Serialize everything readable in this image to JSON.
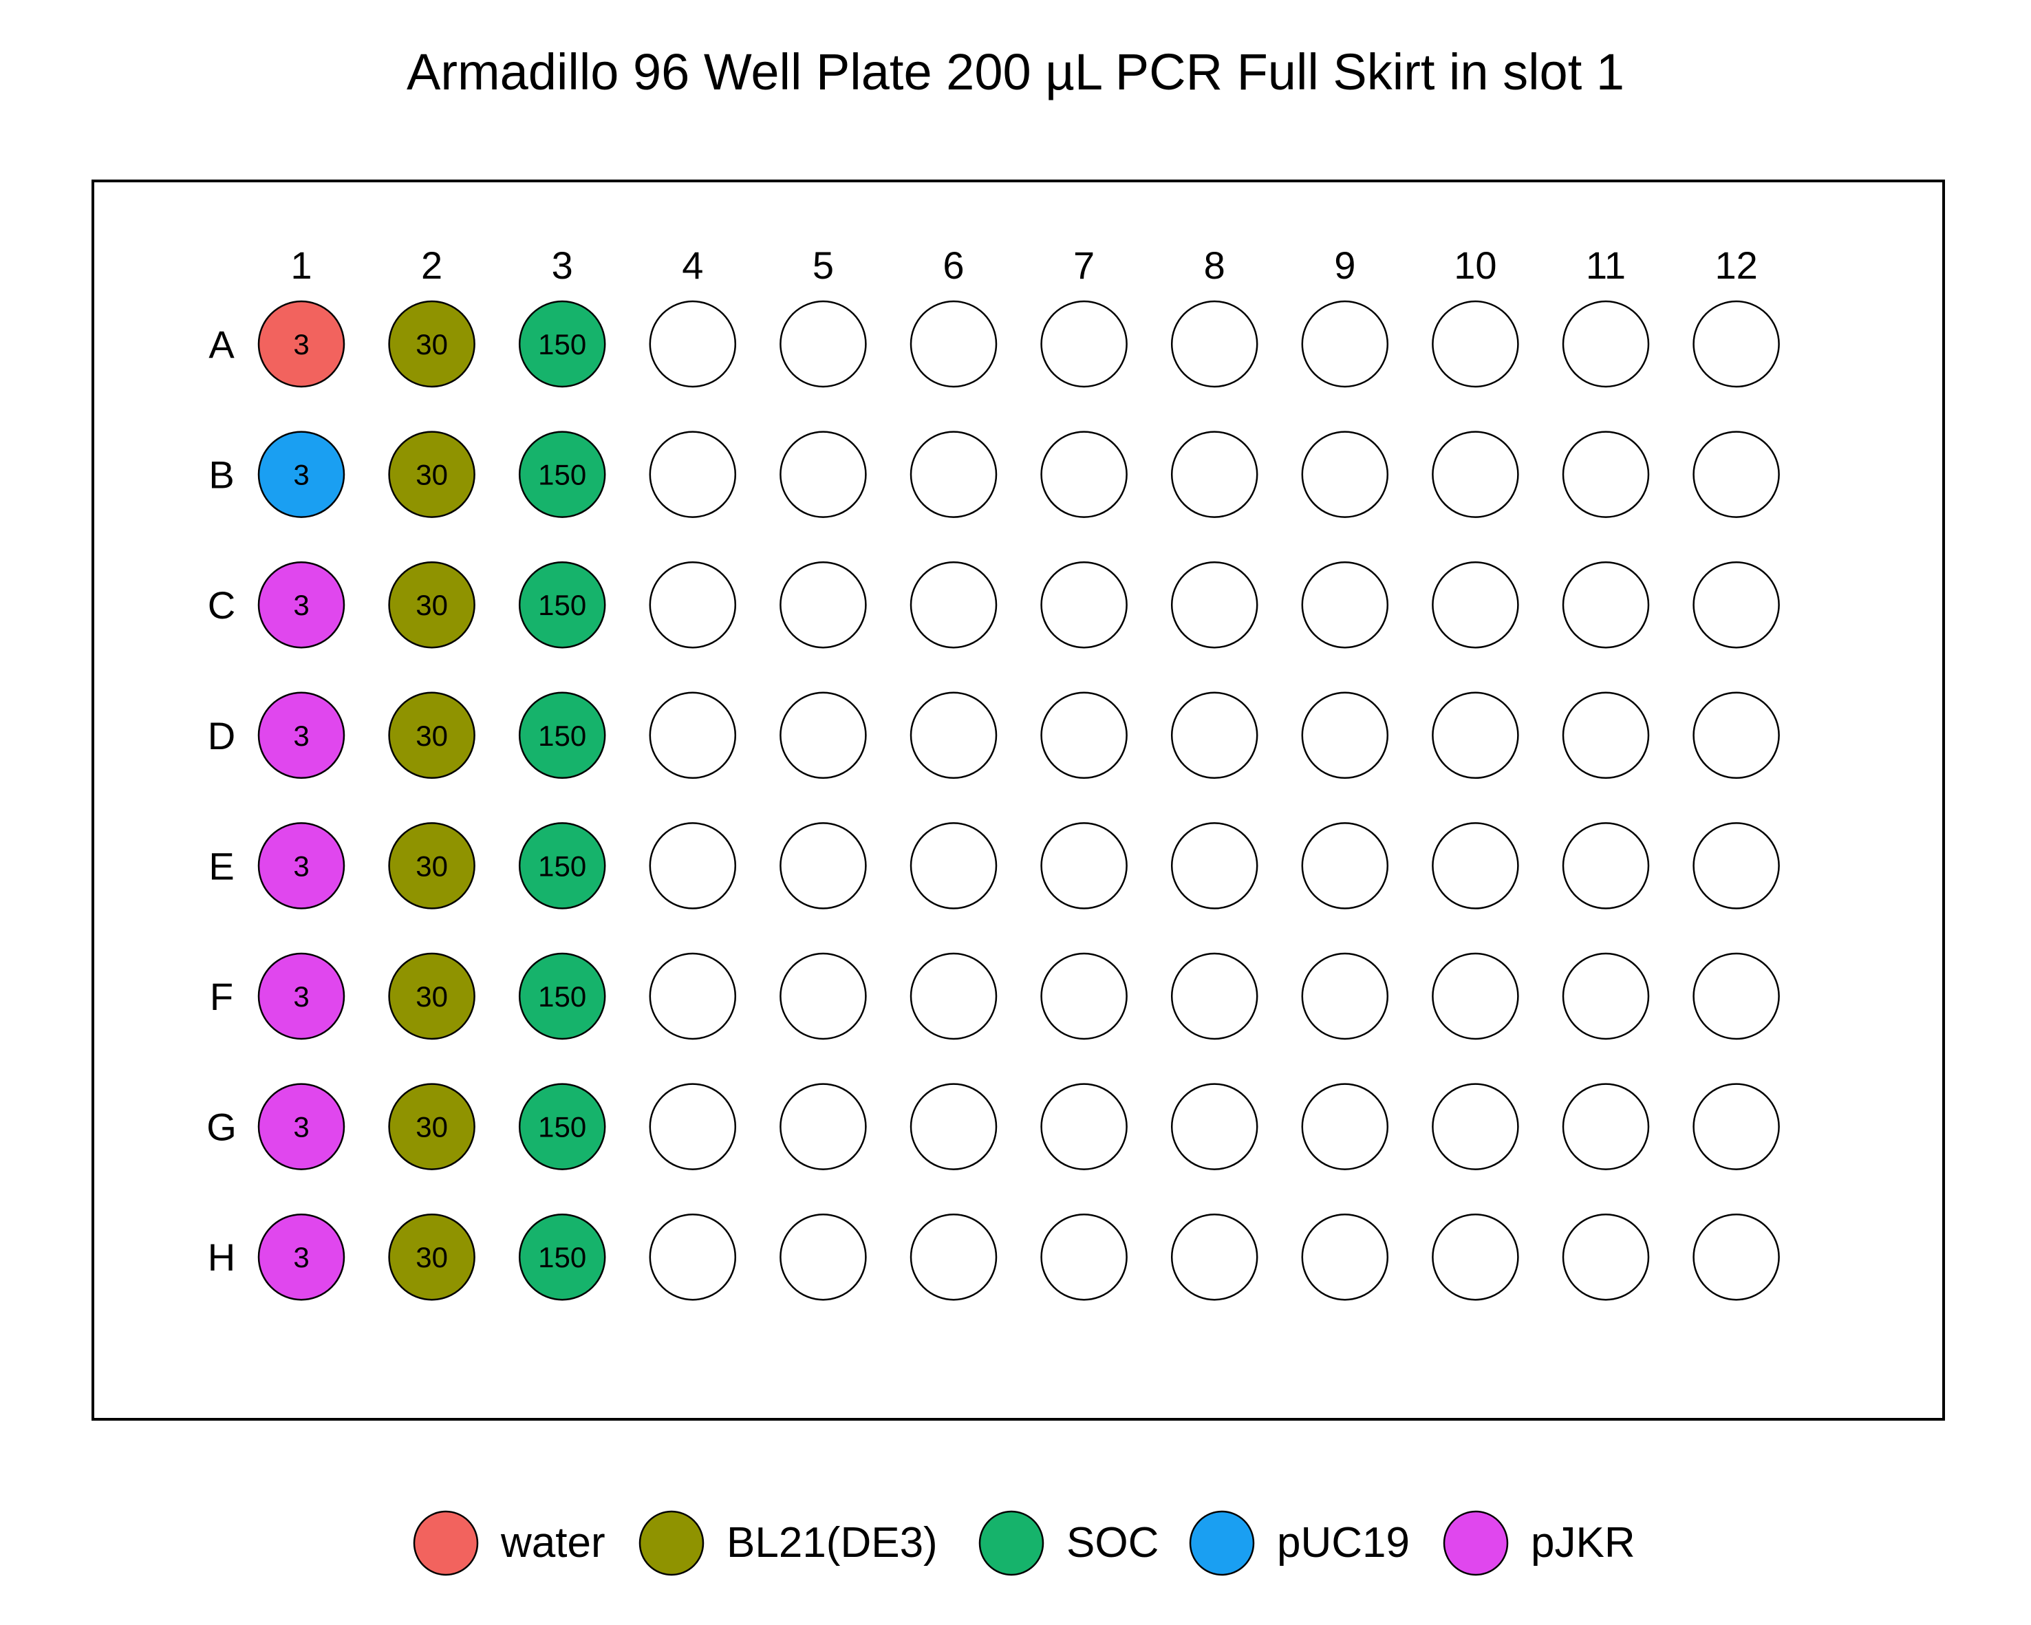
{
  "title": "Armadillo 96 Well Plate 200 µL PCR Full Skirt in slot 1",
  "plate": {
    "columns": [
      "1",
      "2",
      "3",
      "4",
      "5",
      "6",
      "7",
      "8",
      "9",
      "10",
      "11",
      "12"
    ],
    "rows": [
      "A",
      "B",
      "C",
      "D",
      "E",
      "F",
      "G",
      "H"
    ],
    "empty_well_color": "#ffffff",
    "wells": [
      {
        "well": "A1",
        "reagent": "water",
        "volume": "3"
      },
      {
        "well": "B1",
        "reagent": "pUC19",
        "volume": "3"
      },
      {
        "well": "C1",
        "reagent": "pJKR",
        "volume": "3"
      },
      {
        "well": "D1",
        "reagent": "pJKR",
        "volume": "3"
      },
      {
        "well": "E1",
        "reagent": "pJKR",
        "volume": "3"
      },
      {
        "well": "F1",
        "reagent": "pJKR",
        "volume": "3"
      },
      {
        "well": "G1",
        "reagent": "pJKR",
        "volume": "3"
      },
      {
        "well": "H1",
        "reagent": "pJKR",
        "volume": "3"
      },
      {
        "well": "A2",
        "reagent": "BL21(DE3)",
        "volume": "30"
      },
      {
        "well": "B2",
        "reagent": "BL21(DE3)",
        "volume": "30"
      },
      {
        "well": "C2",
        "reagent": "BL21(DE3)",
        "volume": "30"
      },
      {
        "well": "D2",
        "reagent": "BL21(DE3)",
        "volume": "30"
      },
      {
        "well": "E2",
        "reagent": "BL21(DE3)",
        "volume": "30"
      },
      {
        "well": "F2",
        "reagent": "BL21(DE3)",
        "volume": "30"
      },
      {
        "well": "G2",
        "reagent": "BL21(DE3)",
        "volume": "30"
      },
      {
        "well": "H2",
        "reagent": "BL21(DE3)",
        "volume": "30"
      },
      {
        "well": "A3",
        "reagent": "SOC",
        "volume": "150"
      },
      {
        "well": "B3",
        "reagent": "SOC",
        "volume": "150"
      },
      {
        "well": "C3",
        "reagent": "SOC",
        "volume": "150"
      },
      {
        "well": "D3",
        "reagent": "SOC",
        "volume": "150"
      },
      {
        "well": "E3",
        "reagent": "SOC",
        "volume": "150"
      },
      {
        "well": "F3",
        "reagent": "SOC",
        "volume": "150"
      },
      {
        "well": "G3",
        "reagent": "SOC",
        "volume": "150"
      },
      {
        "well": "H3",
        "reagent": "SOC",
        "volume": "150"
      }
    ]
  },
  "legend": [
    {
      "label": "water",
      "color": "#f2635e"
    },
    {
      "label": "BL21(DE3)",
      "color": "#8f9300"
    },
    {
      "label": "SOC",
      "color": "#16b36b"
    },
    {
      "label": "pUC19",
      "color": "#1a9ff2"
    },
    {
      "label": "pJKR",
      "color": "#e047ee"
    }
  ]
}
